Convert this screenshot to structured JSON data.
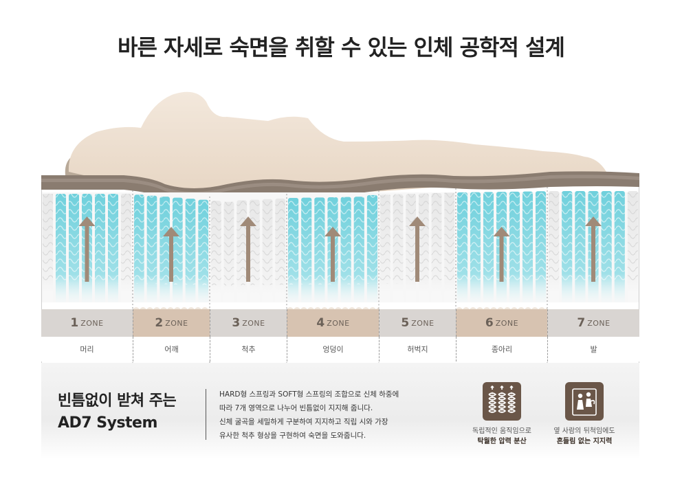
{
  "title": "바른 자세로 숙면을 취할 수 있는 인체 공학적 설계",
  "zones": [
    {
      "num": "1",
      "label": "ZONE",
      "part": "머리",
      "firm": "soft",
      "shade": "#d9d5d2"
    },
    {
      "num": "2",
      "label": "ZONE",
      "part": "어깨",
      "firm": "soft",
      "shade": "#d7c3b1"
    },
    {
      "num": "3",
      "label": "ZONE",
      "part": "척추",
      "firm": "hard",
      "shade": "#d9d5d2"
    },
    {
      "num": "4",
      "label": "ZONE",
      "part": "엉덩이",
      "firm": "soft",
      "shade": "#d7c3b1"
    },
    {
      "num": "5",
      "label": "ZONE",
      "part": "허벅지",
      "firm": "hard",
      "shade": "#d9d5d2"
    },
    {
      "num": "6",
      "label": "ZONE",
      "part": "종아리",
      "firm": "soft",
      "shade": "#d7c3b1"
    },
    {
      "num": "7",
      "label": "ZONE",
      "part": "발",
      "firm": "soft",
      "shade": "#d9d5d2"
    }
  ],
  "system": {
    "title_line1": "빈틈없이 받쳐 주는",
    "title_line2": "AD7 System",
    "desc": [
      "HARD형 스프링과 SOFT형 스프링의 조합으로 신체 하중에",
      "따라 7개 영역으로 나누어 빈틈없이 지지해 줍니다.",
      "신체 굴곡을 세밀하게 구분하여 지지하고 직립 시와 가장",
      "유사한 척추 형상을 구현하여 숙면을 도와줍니다."
    ]
  },
  "features": [
    {
      "icon": "spring-coil-icon",
      "line1": "독립적인 움직임으로",
      "line2": "탁월한 압력 분산"
    },
    {
      "icon": "sleeping-couple-icon",
      "line1": "옆 사람의 뒤척임에도",
      "line2": "흔들림 없는 지지력"
    }
  ],
  "colors": {
    "soft_spring": "#6fd0dc",
    "hard_spring": "#e6e6e6",
    "arrow": "#a08a78",
    "body": "#efe2d3",
    "topper": "#8a7c70",
    "icon_bg": "#6a5648"
  }
}
